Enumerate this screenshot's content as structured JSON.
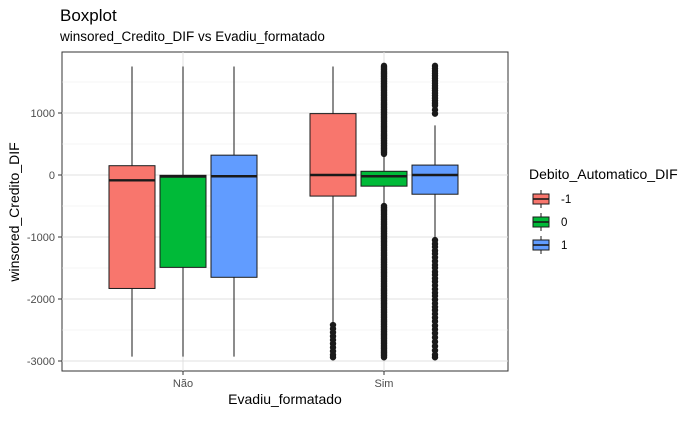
{
  "chart_data": {
    "type": "boxplot",
    "title": "Boxplot",
    "subtitle": "winsored_Credito_DIF vs Evadiu_formatado",
    "xlabel": "Evadiu_formatado",
    "ylabel": "winsored_Credito_DIF",
    "categories": [
      "Não",
      "Sim"
    ],
    "yticks": [
      1000,
      0,
      -1000,
      -2000,
      -3000
    ],
    "ylim": [
      -3150,
      1850
    ],
    "grid": true,
    "legend": {
      "title": "Debito_Automatico_DIF",
      "placement": "right"
    },
    "series": [
      {
        "name": "-1",
        "color": "#F8766D",
        "boxes": [
          {
            "category": "Não",
            "whisker_low": -2930,
            "q1": -1830,
            "median": -85,
            "q3": 150,
            "whisker_high": 1750,
            "outliers": []
          },
          {
            "category": "Sim",
            "whisker_low": -2380,
            "q1": -340,
            "median": 0,
            "q3": 990,
            "whisker_high": 1750,
            "outliers": [
              -2420,
              -2480,
              -2540,
              -2600,
              -2660,
              -2720,
              -2780,
              -2840,
              -2900,
              -2940
            ]
          }
        ]
      },
      {
        "name": "0",
        "color": "#00BA38",
        "boxes": [
          {
            "category": "Não",
            "whisker_low": -2930,
            "q1": -1490,
            "median": -25,
            "q3": -5,
            "whisker_high": 1750,
            "outliers": []
          },
          {
            "category": "Sim",
            "whisker_low": -460,
            "q1": -180,
            "median": -20,
            "q3": 60,
            "whisker_high": 300,
            "outliers": [
              1760,
              1740,
              1720,
              1700,
              1680,
              1660,
              1640,
              1620,
              1600,
              1580,
              1560,
              1540,
              1520,
              1500,
              1480,
              1460,
              1440,
              1420,
              1400,
              1380,
              1360,
              1340,
              1320,
              1300,
              1280,
              1260,
              1240,
              1220,
              1200,
              1180,
              1160,
              1140,
              1120,
              1100,
              1080,
              1060,
              1040,
              1020,
              1000,
              980,
              960,
              940,
              920,
              900,
              880,
              860,
              840,
              820,
              800,
              780,
              760,
              740,
              720,
              700,
              680,
              660,
              640,
              620,
              600,
              580,
              560,
              540,
              520,
              500,
              480,
              460,
              440,
              420,
              400,
              380,
              360,
              340,
              -500,
              -520,
              -540,
              -560,
              -580,
              -600,
              -620,
              -640,
              -660,
              -680,
              -700,
              -720,
              -740,
              -760,
              -780,
              -800,
              -820,
              -840,
              -860,
              -880,
              -900,
              -920,
              -940,
              -960,
              -980,
              -1000,
              -1020,
              -1040,
              -1060,
              -1080,
              -1100,
              -1120,
              -1140,
              -1160,
              -1180,
              -1200,
              -1220,
              -1240,
              -1260,
              -1280,
              -1300,
              -1320,
              -1340,
              -1360,
              -1380,
              -1400,
              -1420,
              -1440,
              -1460,
              -1480,
              -1500,
              -1520,
              -1540,
              -1560,
              -1580,
              -1600,
              -1620,
              -1640,
              -1660,
              -1680,
              -1700,
              -1720,
              -1740,
              -1760,
              -1780,
              -1800,
              -1820,
              -1840,
              -1860,
              -1880,
              -1900,
              -1920,
              -1940,
              -1960,
              -1980,
              -2000,
              -2020,
              -2040,
              -2060,
              -2080,
              -2100,
              -2120,
              -2140,
              -2160,
              -2180,
              -2200,
              -2220,
              -2240,
              -2260,
              -2280,
              -2300,
              -2320,
              -2340,
              -2360,
              -2380,
              -2400,
              -2420,
              -2440,
              -2460,
              -2480,
              -2500,
              -2520,
              -2540,
              -2560,
              -2580,
              -2600,
              -2620,
              -2640,
              -2660,
              -2680,
              -2700,
              -2720,
              -2740,
              -2760,
              -2780,
              -2800,
              -2820,
              -2840,
              -2860,
              -2880,
              -2900,
              -2920,
              -2940
            ]
          }
        ]
      },
      {
        "name": "1",
        "color": "#619CFF",
        "boxes": [
          {
            "category": "Não",
            "whisker_low": -2930,
            "q1": -1650,
            "median": -20,
            "q3": 320,
            "whisker_high": 1750,
            "outliers": []
          },
          {
            "category": "Sim",
            "whisker_low": -1000,
            "q1": -310,
            "median": 0,
            "q3": 160,
            "whisker_high": 800,
            "outliers": [
              1760,
              1720,
              1680,
              1640,
              1600,
              1560,
              1520,
              1480,
              1440,
              1400,
              1360,
              1320,
              1280,
              1240,
              1200,
              1160,
              1120,
              1050,
              990,
              -1050,
              -1110,
              -1160,
              -1220,
              -1270,
              -1330,
              -1390,
              -1450,
              -1500,
              -1560,
              -1610,
              -1670,
              -1720,
              -1780,
              -1840,
              -1900,
              -1950,
              -2010,
              -2070,
              -2130,
              -2180,
              -2240,
              -2300,
              -2360,
              -2430,
              -2490,
              -2550,
              -2620,
              -2690,
              -2760,
              -2830,
              -2900,
              -2940
            ]
          }
        ]
      }
    ]
  }
}
